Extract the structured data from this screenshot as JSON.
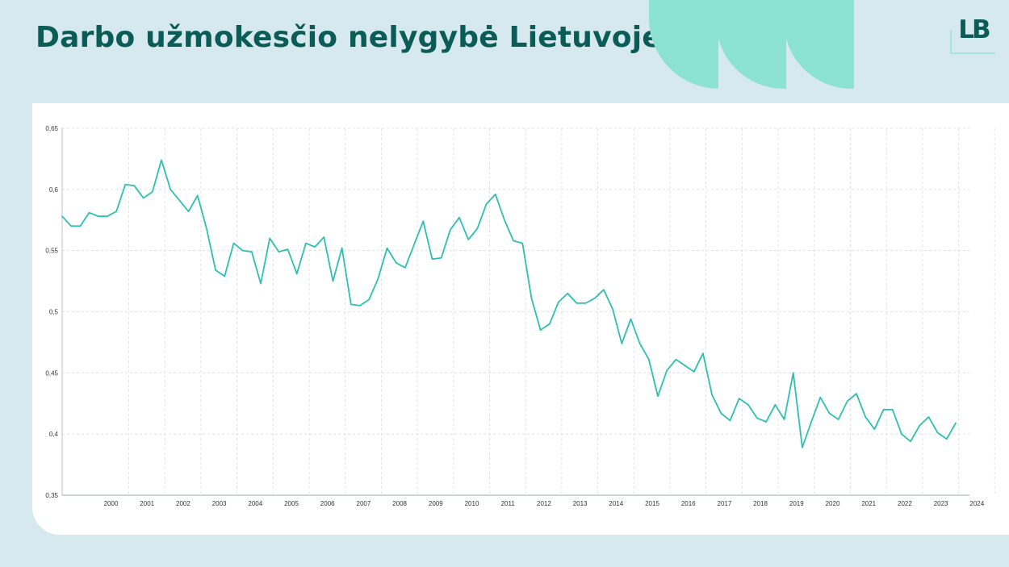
{
  "header": {
    "title": "Darbo užmokesčio nelygybė Lietuvoje"
  },
  "logo": {
    "text": "LB",
    "color": "#0b5c57"
  },
  "colors": {
    "line": "#2dbfb3",
    "title": "#0b5c57",
    "background": "#d6e9ef",
    "decor": "#8de3d1"
  },
  "chart_data": {
    "type": "line",
    "title": "",
    "xlabel": "",
    "ylabel": "",
    "ylim": [
      0.35,
      0.65
    ],
    "yticks": [
      "0,35",
      "0,4",
      "0,45",
      "0,5",
      "0,55",
      "0,6",
      "0,65"
    ],
    "xticks": [
      "2000",
      "2001",
      "2002",
      "2003",
      "2004",
      "2005",
      "2006",
      "2007",
      "2008",
      "2009",
      "2010",
      "2011",
      "2012",
      "2013",
      "2014",
      "2015",
      "2016",
      "2017",
      "2018",
      "2019",
      "2020",
      "2021",
      "2022",
      "2023",
      "2024"
    ],
    "grid": true,
    "legend": "none",
    "series": [
      {
        "x_start": "1999-Q4",
        "frequency": "quarterly",
        "values": [
          0.578,
          0.57,
          0.57,
          0.581,
          0.578,
          0.578,
          0.582,
          0.604,
          0.603,
          0.593,
          0.598,
          0.624,
          0.6,
          0.591,
          0.582,
          0.595,
          0.568,
          0.534,
          0.529,
          0.556,
          0.55,
          0.549,
          0.523,
          0.56,
          0.549,
          0.551,
          0.531,
          0.556,
          0.553,
          0.561,
          0.525,
          0.552,
          0.506,
          0.505,
          0.51,
          0.527,
          0.552,
          0.54,
          0.536,
          0.555,
          0.574,
          0.543,
          0.544,
          0.567,
          0.577,
          0.559,
          0.568,
          0.588,
          0.596,
          0.575,
          0.558,
          0.556,
          0.511,
          0.485,
          0.49,
          0.508,
          0.515,
          0.507,
          0.507,
          0.511,
          0.518,
          0.502,
          0.474,
          0.494,
          0.474,
          0.461,
          0.431,
          0.452,
          0.461,
          0.456,
          0.451,
          0.466,
          0.432,
          0.417,
          0.411,
          0.429,
          0.424,
          0.413,
          0.41,
          0.424,
          0.412,
          0.45,
          0.389,
          0.41,
          0.43,
          0.417,
          0.412,
          0.427,
          0.433,
          0.414,
          0.404,
          0.42,
          0.42,
          0.4,
          0.394,
          0.407,
          0.414,
          0.401,
          0.396,
          0.409
        ]
      }
    ]
  }
}
